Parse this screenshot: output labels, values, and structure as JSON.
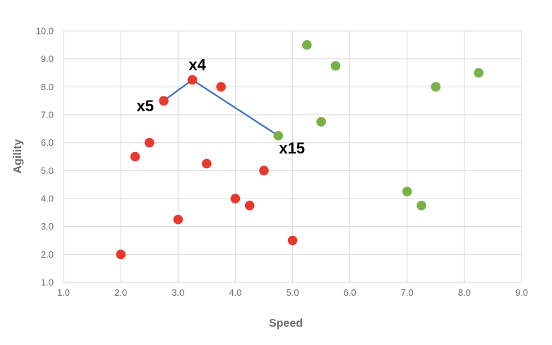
{
  "chart_data": {
    "type": "scatter",
    "xlabel": "Speed",
    "ylabel": "Agility",
    "xlim": [
      1.0,
      9.0
    ],
    "ylim": [
      1.0,
      10.0
    ],
    "x_ticks": [
      "1.0",
      "2.0",
      "3.0",
      "4.0",
      "5.0",
      "6.0",
      "7.0",
      "8.0",
      "9.0"
    ],
    "y_ticks": [
      "1.0",
      "2.0",
      "3.0",
      "4.0",
      "5.0",
      "6.0",
      "7.0",
      "8.0",
      "9.0",
      "10.0"
    ],
    "grid": true,
    "series": [
      {
        "color": "#e8392c",
        "points": [
          {
            "x": 2.0,
            "y": 2.0
          },
          {
            "x": 2.25,
            "y": 5.5
          },
          {
            "x": 2.5,
            "y": 6.0
          },
          {
            "x": 2.75,
            "y": 7.5
          },
          {
            "x": 3.0,
            "y": 3.25
          },
          {
            "x": 3.25,
            "y": 8.25
          },
          {
            "x": 3.5,
            "y": 5.25
          },
          {
            "x": 3.75,
            "y": 8.0
          },
          {
            "x": 4.0,
            "y": 4.0
          },
          {
            "x": 4.25,
            "y": 3.75
          },
          {
            "x": 4.5,
            "y": 5.0
          },
          {
            "x": 5.0,
            "y": 2.5
          }
        ]
      },
      {
        "color": "#78b04a",
        "points": [
          {
            "x": 4.75,
            "y": 6.25
          },
          {
            "x": 5.25,
            "y": 9.5
          },
          {
            "x": 5.5,
            "y": 6.75
          },
          {
            "x": 5.75,
            "y": 8.75
          },
          {
            "x": 7.0,
            "y": 4.25
          },
          {
            "x": 7.25,
            "y": 3.75
          },
          {
            "x": 7.5,
            "y": 8.0
          },
          {
            "x": 8.25,
            "y": 8.5
          }
        ]
      }
    ],
    "connector": {
      "color": "#3a6cc4",
      "points": [
        {
          "x": 2.75,
          "y": 7.5
        },
        {
          "x": 3.25,
          "y": 8.25
        },
        {
          "x": 4.75,
          "y": 6.25
        }
      ]
    },
    "annotations": [
      {
        "text": "x5",
        "x": 2.75,
        "y": 7.5,
        "anchor": "left"
      },
      {
        "text": "x4",
        "x": 3.25,
        "y": 8.25,
        "anchor": "above"
      },
      {
        "text": "x15",
        "x": 4.75,
        "y": 6.25,
        "anchor": "below-right"
      }
    ]
  }
}
